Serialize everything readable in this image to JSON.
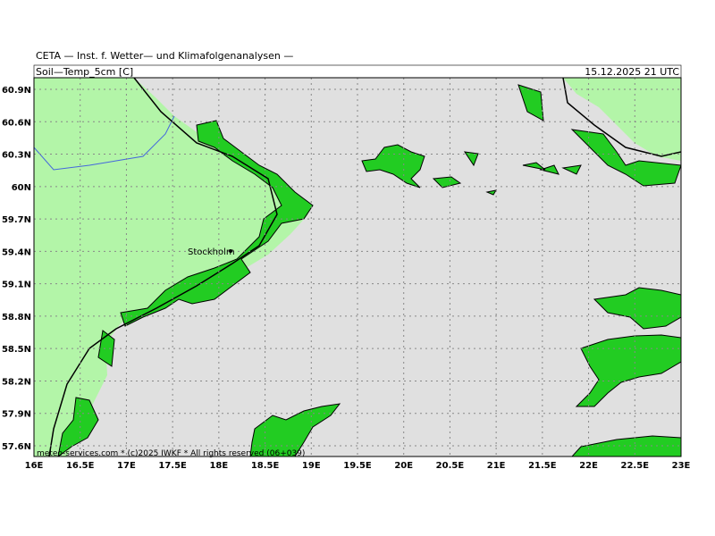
{
  "header": {
    "title": "CETA — Inst. f. Wetter— und Klimafolgenanalysen —",
    "parameter": "Soil—Temp_5cm [C]",
    "valid_time": "15.12.2025 21 UTC"
  },
  "map": {
    "lat_labels": [
      "60.9N",
      "60.6N",
      "60.3N",
      "60N",
      "59.7N",
      "59.4N",
      "59.1N",
      "58.8N",
      "58.5N",
      "58.2N",
      "57.9N",
      "57.6N"
    ],
    "lon_labels": [
      "16E",
      "16.5E",
      "17E",
      "17.5E",
      "18E",
      "18.5E",
      "19E",
      "19.5E",
      "20E",
      "20.5E",
      "21E",
      "21.5E",
      "22E",
      "22.5E",
      "23E"
    ],
    "places": [
      "Stockholm"
    ],
    "credit": "meteo-services.com * (c)2025 IWKF * All rights reserved (06+039)"
  }
}
